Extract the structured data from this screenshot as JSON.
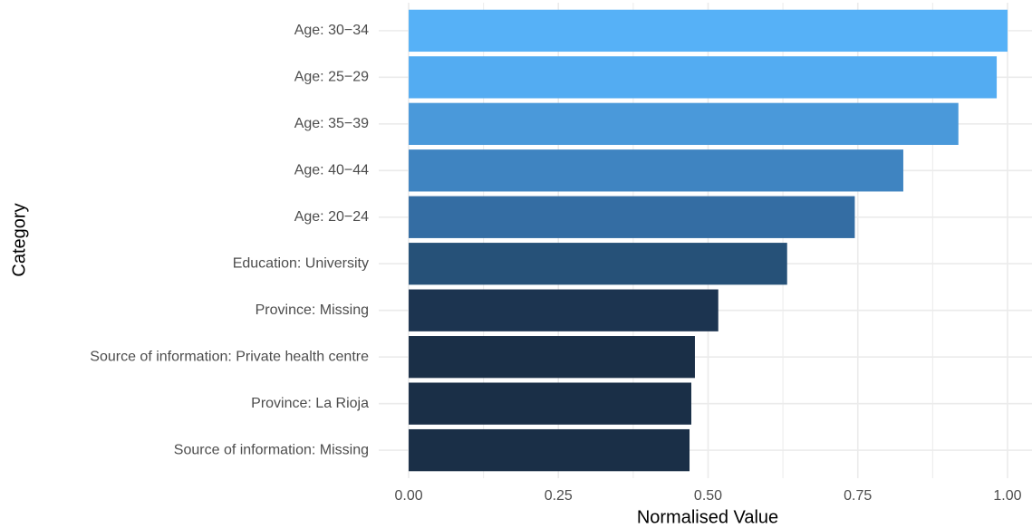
{
  "chart_data": {
    "type": "barh",
    "categories": [
      "Age: 30−34",
      "Age: 25−29",
      "Age: 35−39",
      "Age: 40−44",
      "Age: 20−24",
      "Education: University",
      "Province: Missing",
      "Source of information: Private health centre",
      "Province: La Rioja",
      "Source of information: Missing"
    ],
    "values": [
      1.0,
      0.982,
      0.918,
      0.826,
      0.745,
      0.632,
      0.517,
      0.478,
      0.472,
      0.469
    ],
    "colors": [
      "#56b1f7",
      "#53acf2",
      "#4a99da",
      "#3f84c1",
      "#346da3",
      "#265178",
      "#1c3450",
      "#1a2f47",
      "#1a2f47",
      "#1a2f47"
    ],
    "xlabel": "Normalised Value",
    "ylabel": "Category",
    "xlim": [
      -0.05,
      1.05
    ],
    "xticks": [
      {
        "value": 0,
        "label": "0.00"
      },
      {
        "value": 0.25,
        "label": "0.25"
      },
      {
        "value": 0.5,
        "label": "0.50"
      },
      {
        "value": 0.75,
        "label": "0.75"
      },
      {
        "value": 1,
        "label": "1.00"
      }
    ],
    "grid": true
  }
}
